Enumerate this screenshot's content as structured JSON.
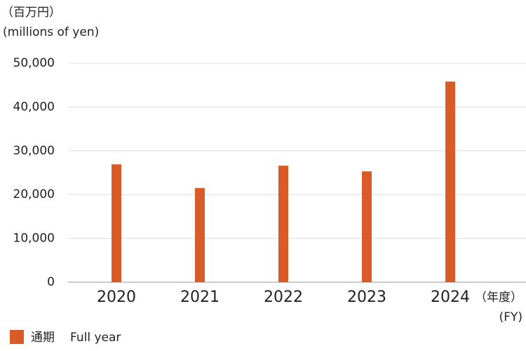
{
  "chart_data": {
    "type": "bar",
    "y_unit_ja": "（百万円）",
    "y_unit_en": "(millions of yen)",
    "x_unit_ja": "（年度）",
    "x_unit_en": "(FY)",
    "categories": [
      "2020",
      "2021",
      "2022",
      "2023",
      "2024"
    ],
    "series": [
      {
        "name": "通期",
        "name_en": "Full year",
        "color": "#d95b27",
        "values": [
          26900,
          21500,
          26600,
          25300,
          45800
        ]
      }
    ],
    "ylim": [
      0,
      50000
    ],
    "yticks": [
      0,
      {
        "value": 10000,
        "label": "10,000"
      },
      {
        "value": 20000,
        "label": "20,000"
      },
      {
        "value": 30000,
        "label": "30,000"
      },
      {
        "value": 40000,
        "label": "40,000"
      },
      {
        "value": 50000,
        "label": "50,000"
      }
    ],
    "grid": true
  }
}
